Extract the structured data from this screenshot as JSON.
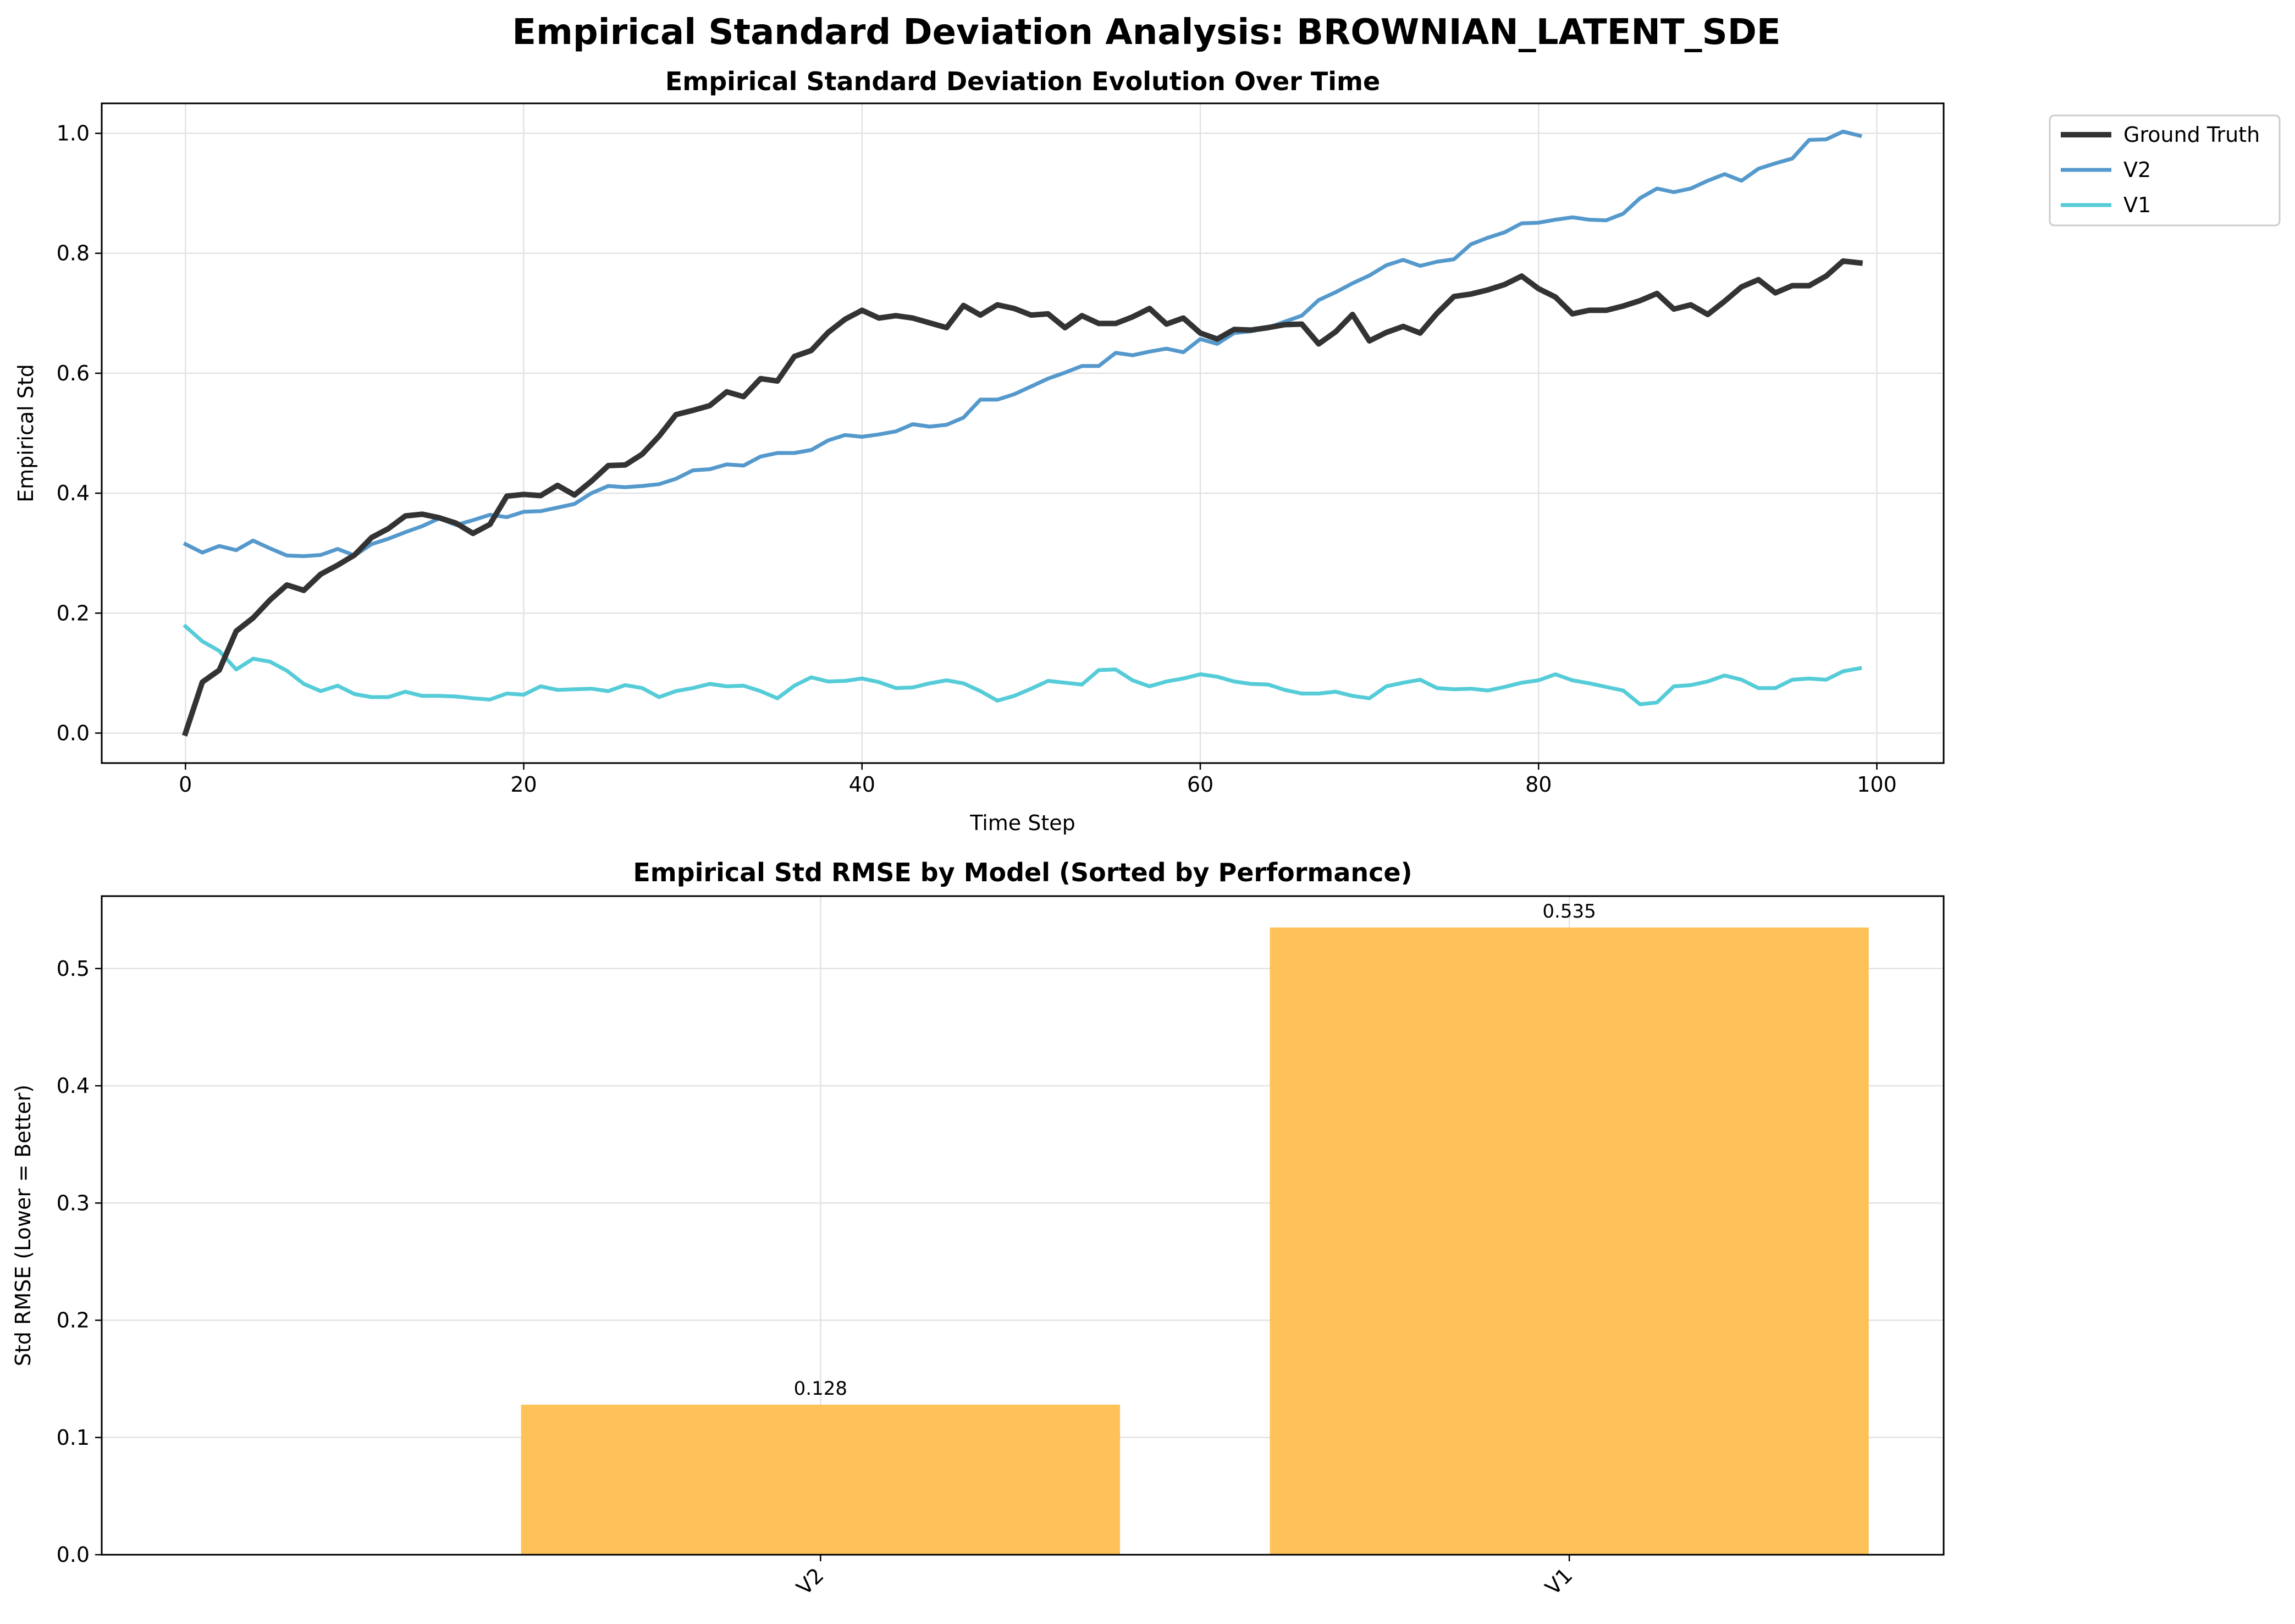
{
  "figure": {
    "title": "Empirical Standard Deviation Analysis: BROWNIAN_LATENT_SDE"
  },
  "chart_data": [
    {
      "type": "line",
      "title": "Empirical Standard Deviation Evolution Over Time",
      "xlabel": "Time Step",
      "ylabel": "Empirical Std",
      "xlim": [
        -4.95,
        103.95
      ],
      "ylim": [
        -0.05,
        1.05
      ],
      "xticks": [
        0,
        20,
        40,
        60,
        80,
        100
      ],
      "yticks": [
        0.0,
        0.2,
        0.4,
        0.6,
        0.8,
        1.0
      ],
      "ytick_labels": [
        "0.0",
        "0.2",
        "0.4",
        "0.6",
        "0.8",
        "1.0"
      ],
      "grid": true,
      "legend": "outside-top-right",
      "series": [
        {
          "name": "Ground Truth",
          "color": "#333333",
          "values": [
            0.0,
            0.085,
            0.105,
            0.17,
            0.192,
            0.222,
            0.247,
            0.238,
            0.265,
            0.28,
            0.297,
            0.326,
            0.341,
            0.362,
            0.365,
            0.359,
            0.35,
            0.333,
            0.348,
            0.395,
            0.398,
            0.396,
            0.413,
            0.397,
            0.42,
            0.446,
            0.447,
            0.465,
            0.495,
            0.531,
            0.538,
            0.546,
            0.569,
            0.561,
            0.591,
            0.587,
            0.628,
            0.638,
            0.668,
            0.69,
            0.705,
            0.692,
            0.696,
            0.692,
            0.684,
            0.676,
            0.713,
            0.697,
            0.714,
            0.708,
            0.697,
            0.699,
            0.676,
            0.696,
            0.683,
            0.683,
            0.694,
            0.708,
            0.682,
            0.692,
            0.667,
            0.657,
            0.673,
            0.672,
            0.676,
            0.681,
            0.682,
            0.649,
            0.669,
            0.698,
            0.654,
            0.668,
            0.678,
            0.667,
            0.7,
            0.728,
            0.732,
            0.739,
            0.748,
            0.762,
            0.741,
            0.727,
            0.699,
            0.705,
            0.705,
            0.712,
            0.721,
            0.733,
            0.707,
            0.714,
            0.698,
            0.72,
            0.744,
            0.756,
            0.734,
            0.746,
            0.746,
            0.762,
            0.787,
            0.784
          ]
        },
        {
          "name": "V2",
          "color": "#5599cc",
          "values": [
            0.315,
            0.301,
            0.312,
            0.305,
            0.321,
            0.308,
            0.296,
            0.295,
            0.297,
            0.307,
            0.296,
            0.315,
            0.324,
            0.335,
            0.345,
            0.358,
            0.347,
            0.355,
            0.364,
            0.36,
            0.369,
            0.37,
            0.376,
            0.382,
            0.4,
            0.412,
            0.41,
            0.412,
            0.415,
            0.424,
            0.438,
            0.44,
            0.448,
            0.446,
            0.461,
            0.467,
            0.467,
            0.472,
            0.488,
            0.497,
            0.494,
            0.498,
            0.503,
            0.515,
            0.511,
            0.514,
            0.526,
            0.556,
            0.556,
            0.565,
            0.578,
            0.591,
            0.601,
            0.612,
            0.612,
            0.634,
            0.63,
            0.636,
            0.641,
            0.635,
            0.657,
            0.649,
            0.667,
            0.67,
            0.676,
            0.686,
            0.696,
            0.722,
            0.735,
            0.75,
            0.763,
            0.78,
            0.789,
            0.779,
            0.786,
            0.79,
            0.815,
            0.826,
            0.835,
            0.85,
            0.851,
            0.856,
            0.86,
            0.856,
            0.855,
            0.866,
            0.892,
            0.908,
            0.902,
            0.908,
            0.921,
            0.932,
            0.921,
            0.941,
            0.95,
            0.958,
            0.989,
            0.99,
            1.003,
            0.996
          ]
        },
        {
          "name": "V1",
          "color": "#55ccd8",
          "values": [
            0.178,
            0.153,
            0.137,
            0.106,
            0.124,
            0.119,
            0.104,
            0.082,
            0.07,
            0.079,
            0.065,
            0.06,
            0.06,
            0.069,
            0.062,
            0.062,
            0.061,
            0.058,
            0.056,
            0.066,
            0.064,
            0.078,
            0.072,
            0.073,
            0.074,
            0.07,
            0.08,
            0.075,
            0.06,
            0.07,
            0.075,
            0.082,
            0.078,
            0.079,
            0.07,
            0.058,
            0.079,
            0.093,
            0.086,
            0.087,
            0.091,
            0.085,
            0.075,
            0.076,
            0.083,
            0.088,
            0.083,
            0.07,
            0.054,
            0.062,
            0.074,
            0.087,
            0.084,
            0.081,
            0.105,
            0.106,
            0.088,
            0.078,
            0.086,
            0.091,
            0.098,
            0.094,
            0.086,
            0.082,
            0.081,
            0.072,
            0.066,
            0.066,
            0.069,
            0.062,
            0.058,
            0.078,
            0.084,
            0.089,
            0.075,
            0.073,
            0.074,
            0.071,
            0.077,
            0.084,
            0.088,
            0.098,
            0.088,
            0.083,
            0.077,
            0.071,
            0.048,
            0.051,
            0.078,
            0.08,
            0.086,
            0.096,
            0.089,
            0.075,
            0.075,
            0.089,
            0.091,
            0.089,
            0.103,
            0.108
          ]
        }
      ]
    },
    {
      "type": "bar",
      "title": "Empirical Std RMSE by Model (Sorted by Performance)",
      "xlabel": "",
      "ylabel": "Std RMSE (Lower = Better)",
      "categories": [
        "V2",
        "V1"
      ],
      "values": [
        0.128,
        0.535
      ],
      "value_labels": [
        "0.128",
        "0.535"
      ],
      "bar_color": "#ffbf50",
      "ylim": [
        0,
        0.5618
      ],
      "yticks": [
        0.0,
        0.1,
        0.2,
        0.3,
        0.4,
        0.5
      ],
      "ytick_labels": [
        "0.0",
        "0.1",
        "0.2",
        "0.3",
        "0.4",
        "0.5"
      ],
      "grid": true
    }
  ]
}
